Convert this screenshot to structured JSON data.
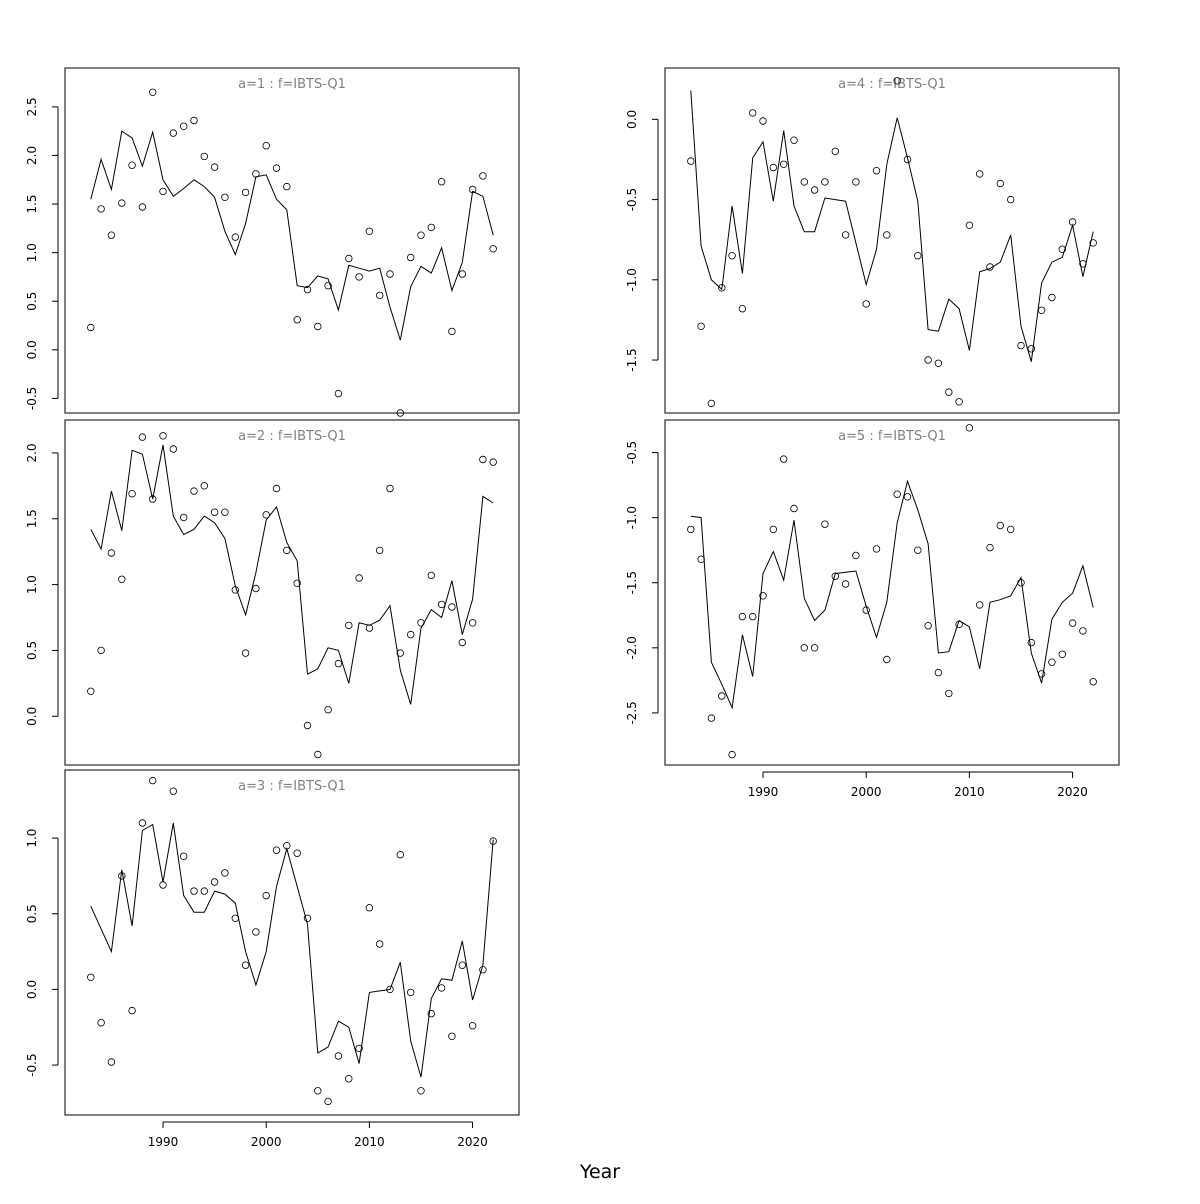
{
  "chart_data": {
    "type": "scatter",
    "xlabel": "Year",
    "years": [
      1983,
      1984,
      1985,
      1986,
      1987,
      1988,
      1989,
      1990,
      1991,
      1992,
      1993,
      1994,
      1995,
      1996,
      1997,
      1998,
      1999,
      2000,
      2001,
      2002,
      2003,
      2004,
      2005,
      2006,
      2007,
      2008,
      2009,
      2010,
      2011,
      2012,
      2013,
      2014,
      2015,
      2016,
      2017,
      2018,
      2019,
      2020,
      2021,
      2022
    ],
    "xlim": [
      1980.5,
      2024.5
    ],
    "xticks": [
      1990,
      2000,
      2010,
      2020
    ],
    "panels": [
      {
        "title": "a=1  :  f=IBTS-Q1",
        "ylim": [
          -0.65,
          2.9
        ],
        "yticks": [
          -0.5,
          0.0,
          0.5,
          1.0,
          1.5,
          2.0,
          2.5
        ],
        "ytick_labels": [
          "-0.5",
          "0.0",
          "0.5",
          "1.0",
          "1.5",
          "2.0",
          "2.5"
        ],
        "fitted": [
          1.55,
          1.96,
          1.65,
          2.25,
          2.18,
          1.89,
          2.24,
          1.75,
          1.58,
          1.66,
          1.75,
          1.68,
          1.57,
          1.22,
          0.98,
          1.3,
          1.78,
          1.8,
          1.55,
          1.44,
          0.66,
          0.64,
          0.76,
          0.73,
          0.41,
          0.87,
          0.84,
          0.81,
          0.84,
          0.44,
          0.1,
          0.65,
          0.86,
          0.79,
          1.05,
          0.61,
          0.9,
          1.63,
          1.58,
          1.18
        ],
        "observed": [
          0.23,
          1.45,
          1.18,
          1.51,
          1.9,
          1.47,
          2.65,
          1.63,
          2.23,
          2.3,
          2.36,
          1.99,
          1.88,
          1.57,
          1.16,
          1.62,
          1.81,
          2.1,
          1.87,
          1.68,
          0.31,
          0.62,
          0.24,
          0.66,
          -0.45,
          0.94,
          0.75,
          1.22,
          0.56,
          0.78,
          -0.65,
          0.95,
          1.18,
          1.26,
          1.73,
          0.19,
          0.78,
          1.65,
          1.79,
          1.04
        ]
      },
      {
        "title": "a=2  :  f=IBTS-Q1",
        "ylim": [
          -0.37,
          2.25
        ],
        "yticks": [
          0.0,
          0.5,
          1.0,
          1.5,
          2.0
        ],
        "ytick_labels": [
          "0.0",
          "0.5",
          "1.0",
          "1.5",
          "2.0"
        ],
        "fitted": [
          1.42,
          1.27,
          1.71,
          1.41,
          2.02,
          1.99,
          1.65,
          2.06,
          1.52,
          1.38,
          1.42,
          1.52,
          1.47,
          1.35,
          0.99,
          0.77,
          1.09,
          1.49,
          1.59,
          1.32,
          1.18,
          0.32,
          0.36,
          0.52,
          0.5,
          0.25,
          0.71,
          0.69,
          0.73,
          0.84,
          0.35,
          0.09,
          0.67,
          0.81,
          0.75,
          1.03,
          0.62,
          0.89,
          1.67,
          1.62
        ],
        "observed": [
          0.19,
          0.5,
          1.24,
          1.04,
          1.69,
          2.12,
          1.65,
          2.13,
          2.03,
          1.51,
          1.71,
          1.75,
          1.55,
          1.55,
          0.96,
          0.48,
          0.97,
          1.53,
          1.73,
          1.26,
          1.01,
          -0.07,
          -0.29,
          0.05,
          0.4,
          0.69,
          1.05,
          0.67,
          1.26,
          1.73,
          0.48,
          0.62,
          0.71,
          1.07,
          0.85,
          0.83,
          0.56,
          0.71,
          1.95,
          1.93
        ]
      },
      {
        "title": "a=3  :  f=IBTS-Q1",
        "ylim": [
          -0.83,
          1.45
        ],
        "yticks": [
          -0.5,
          0.0,
          0.5,
          1.0
        ],
        "ytick_labels": [
          "-0.5",
          "0.0",
          "0.5",
          "1.0"
        ],
        "fitted": [
          0.55,
          0.4,
          0.25,
          0.79,
          0.42,
          1.05,
          1.09,
          0.71,
          1.1,
          0.62,
          0.51,
          0.51,
          0.65,
          0.63,
          0.57,
          0.25,
          0.03,
          0.25,
          0.68,
          0.93,
          0.68,
          0.43,
          -0.42,
          -0.38,
          -0.21,
          -0.25,
          -0.49,
          -0.02,
          -0.01,
          0.0,
          0.18,
          -0.34,
          -0.58,
          -0.06,
          0.07,
          0.06,
          0.32,
          -0.07,
          0.16,
          0.99
        ],
        "observed": [
          0.08,
          -0.22,
          -0.48,
          0.75,
          -0.14,
          1.1,
          1.38,
          0.69,
          1.31,
          0.88,
          0.65,
          0.65,
          0.71,
          0.77,
          0.47,
          0.16,
          0.38,
          0.62,
          0.92,
          0.95,
          0.9,
          0.47,
          -0.67,
          -0.74,
          -0.44,
          -0.59,
          -0.39,
          0.54,
          0.3,
          0.0,
          0.89,
          -0.02,
          -0.67,
          -0.16,
          0.01,
          -0.31,
          0.16,
          -0.24,
          0.13,
          0.98
        ]
      },
      {
        "title": "a=4  :  f=IBTS-Q1",
        "ylim": [
          -1.83,
          0.32
        ],
        "yticks": [
          -1.5,
          -1.0,
          -0.5,
          0.0
        ],
        "ytick_labels": [
          "-1.5",
          "-1.0",
          "-0.5",
          "0.0"
        ],
        "fitted": [
          0.18,
          -0.79,
          -1.0,
          -1.06,
          -0.54,
          -0.96,
          -0.24,
          -0.14,
          -0.51,
          -0.07,
          -0.54,
          -0.7,
          -0.7,
          -0.49,
          -0.5,
          -0.51,
          -0.77,
          -1.03,
          -0.81,
          -0.28,
          0.01,
          -0.24,
          -0.51,
          -1.31,
          -1.32,
          -1.12,
          -1.18,
          -1.44,
          -0.95,
          -0.93,
          -0.89,
          -0.72,
          -1.29,
          -1.51,
          -1.02,
          -0.89,
          -0.86,
          -0.66,
          -0.98,
          -0.7
        ],
        "observed": [
          -0.26,
          -1.29,
          -1.77,
          -1.05,
          -0.85,
          -1.18,
          0.04,
          -0.01,
          -0.3,
          -0.28,
          -0.13,
          -0.39,
          -0.44,
          -0.39,
          -0.2,
          -0.72,
          -0.39,
          -1.15,
          -0.32,
          -0.72,
          0.24,
          -0.25,
          -0.85,
          -1.5,
          -1.52,
          -1.7,
          -1.76,
          -0.66,
          -0.34,
          -0.92,
          -0.4,
          -0.5,
          -1.41,
          -1.43,
          -1.19,
          -1.11,
          -0.81,
          -0.64,
          -0.9,
          -0.77
        ]
      },
      {
        "title": "a=5  :  f=IBTS-Q1",
        "ylim": [
          -2.9,
          -0.25
        ],
        "yticks": [
          -2.5,
          -2.0,
          -1.5,
          -1.0,
          -0.5
        ],
        "ytick_labels": [
          "-2.5",
          "-2.0",
          "-1.5",
          "-1.0",
          "-0.5"
        ],
        "fitted": [
          -0.99,
          -1.0,
          -2.11,
          -2.28,
          -2.46,
          -1.9,
          -2.22,
          -1.43,
          -1.26,
          -1.48,
          -1.02,
          -1.62,
          -1.79,
          -1.71,
          -1.43,
          -1.42,
          -1.41,
          -1.68,
          -1.92,
          -1.65,
          -1.04,
          -0.72,
          -0.94,
          -1.2,
          -2.04,
          -2.03,
          -1.79,
          -1.84,
          -2.16,
          -1.65,
          -1.63,
          -1.6,
          -1.46,
          -2.04,
          -2.27,
          -1.78,
          -1.65,
          -1.58,
          -1.37,
          -1.69
        ],
        "observed": [
          -1.09,
          -1.32,
          -2.54,
          -2.37,
          -2.82,
          -1.76,
          -1.76,
          -1.6,
          -1.09,
          -0.55,
          -0.93,
          -2.0,
          -2.0,
          -1.05,
          -1.45,
          -1.51,
          -1.29,
          -1.71,
          -1.24,
          -2.09,
          -0.82,
          -0.84,
          -1.25,
          -1.83,
          -2.19,
          -2.35,
          -1.82,
          -0.31,
          -1.67,
          -1.23,
          -1.06,
          -1.09,
          -1.5,
          -1.96,
          -2.2,
          -2.11,
          -2.05,
          -1.81,
          -1.87,
          -2.26
        ]
      }
    ]
  }
}
